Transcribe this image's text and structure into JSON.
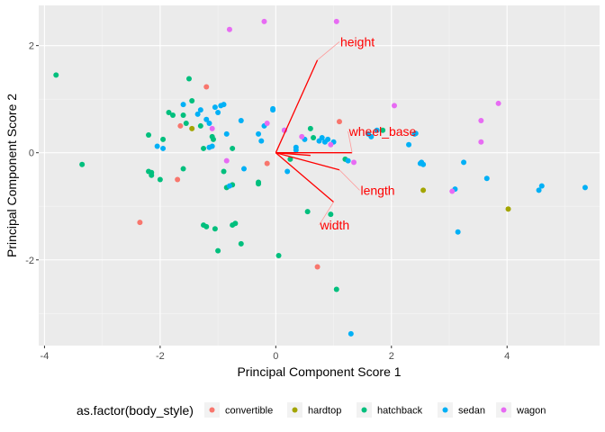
{
  "chart_data": {
    "type": "scatter",
    "subtype": "pca-biplot",
    "xlabel": "Principal Component Score 1",
    "ylabel": "Principal Component Score 2",
    "xlim": [
      -4.1,
      5.6
    ],
    "ylim": [
      -3.6,
      2.75
    ],
    "xticks": [
      -4,
      -2,
      0,
      2,
      4
    ],
    "yticks": [
      -2,
      0,
      2
    ],
    "xtick_labels": [
      "-4",
      "-2",
      "0",
      "2",
      "4"
    ],
    "ytick_labels": [
      "-2",
      "0",
      "2"
    ],
    "grid": true,
    "background": "#ebebeb",
    "legend": {
      "title": "as.factor(body_style)",
      "position": "bottom",
      "entries": [
        {
          "name": "convertible",
          "color": "#F8766D"
        },
        {
          "name": "hardtop",
          "color": "#A3A500"
        },
        {
          "name": "hatchback",
          "color": "#00BF7D"
        },
        {
          "name": "sedan",
          "color": "#00B0F6"
        },
        {
          "name": "wagon",
          "color": "#E76BF3"
        }
      ]
    },
    "series": [
      {
        "name": "convertible",
        "color": "#F8766D",
        "points": [
          [
            -1.2,
            1.23
          ],
          [
            -1.7,
            -0.5
          ],
          [
            -2.35,
            -1.3
          ],
          [
            -0.15,
            -0.2
          ],
          [
            0.72,
            -2.13
          ],
          [
            -1.65,
            0.5
          ],
          [
            1.1,
            0.58
          ]
        ]
      },
      {
        "name": "hardtop",
        "color": "#A3A500",
        "points": [
          [
            -1.45,
            0.45
          ],
          [
            2.55,
            -0.7
          ],
          [
            4.02,
            -1.05
          ]
        ]
      },
      {
        "name": "hatchback",
        "color": "#00BF7D",
        "points": [
          [
            -3.8,
            1.45
          ],
          [
            -3.35,
            -0.22
          ],
          [
            -2.2,
            0.33
          ],
          [
            -2.2,
            -0.35
          ],
          [
            -2.15,
            -0.42
          ],
          [
            -2.15,
            -0.37
          ],
          [
            -2.0,
            -0.5
          ],
          [
            -1.85,
            0.75
          ],
          [
            -1.78,
            0.7
          ],
          [
            -1.6,
            0.7
          ],
          [
            -1.55,
            0.55
          ],
          [
            -1.6,
            -0.3
          ],
          [
            -1.95,
            0.25
          ],
          [
            -1.5,
            1.38
          ],
          [
            -1.45,
            0.97
          ],
          [
            -1.3,
            0.5
          ],
          [
            -1.25,
            0.08
          ],
          [
            -1.1,
            0.3
          ],
          [
            -1.08,
            0.25
          ],
          [
            -1.25,
            -1.35
          ],
          [
            -1.2,
            -1.38
          ],
          [
            -1.05,
            -1.42
          ],
          [
            -0.85,
            -0.65
          ],
          [
            -0.75,
            -0.6
          ],
          [
            -0.75,
            -1.35
          ],
          [
            -0.7,
            -1.32
          ],
          [
            -0.6,
            -1.7
          ],
          [
            -0.3,
            -0.58
          ],
          [
            -0.3,
            -0.55
          ],
          [
            -1.0,
            -1.83
          ],
          [
            -0.75,
            0.08
          ],
          [
            0.05,
            -1.92
          ],
          [
            0.25,
            -0.12
          ],
          [
            0.55,
            -1.1
          ],
          [
            0.6,
            0.45
          ],
          [
            0.65,
            0.28
          ],
          [
            0.95,
            -1.15
          ],
          [
            1.05,
            -2.55
          ],
          [
            1.2,
            -0.12
          ],
          [
            1.85,
            0.42
          ],
          [
            -0.9,
            -0.35
          ]
        ]
      },
      {
        "name": "sedan",
        "color": "#00B0F6",
        "points": [
          [
            -2.05,
            0.12
          ],
          [
            -1.95,
            0.08
          ],
          [
            -1.6,
            0.9
          ],
          [
            -1.35,
            0.72
          ],
          [
            -1.3,
            0.8
          ],
          [
            -1.2,
            0.62
          ],
          [
            -1.15,
            0.1
          ],
          [
            -1.1,
            0.12
          ],
          [
            -1.15,
            0.55
          ],
          [
            -1.05,
            0.85
          ],
          [
            -1.0,
            0.75
          ],
          [
            -0.95,
            0.88
          ],
          [
            -0.9,
            0.9
          ],
          [
            -0.85,
            0.35
          ],
          [
            -0.8,
            -0.62
          ],
          [
            -0.6,
            0.6
          ],
          [
            -0.55,
            -0.3
          ],
          [
            -0.3,
            0.35
          ],
          [
            -0.25,
            0.22
          ],
          [
            -0.2,
            0.5
          ],
          [
            -0.05,
            0.82
          ],
          [
            -0.05,
            0.8
          ],
          [
            0.15,
            0.42
          ],
          [
            0.2,
            -0.35
          ],
          [
            0.35,
            0.1
          ],
          [
            0.35,
            0.05
          ],
          [
            0.5,
            0.25
          ],
          [
            0.75,
            0.22
          ],
          [
            0.8,
            0.28
          ],
          [
            0.85,
            0.2
          ],
          [
            0.9,
            0.25
          ],
          [
            1.0,
            0.2
          ],
          [
            1.25,
            -0.15
          ],
          [
            1.3,
            -3.38
          ],
          [
            1.6,
            0.35
          ],
          [
            1.65,
            0.3
          ],
          [
            1.75,
            0.42
          ],
          [
            2.3,
            0.15
          ],
          [
            2.4,
            0.35
          ],
          [
            2.42,
            0.36
          ],
          [
            2.5,
            -0.2
          ],
          [
            2.55,
            -0.22
          ],
          [
            2.52,
            -0.18
          ],
          [
            3.15,
            -1.48
          ],
          [
            3.25,
            -0.18
          ],
          [
            3.1,
            -0.68
          ],
          [
            3.65,
            -0.48
          ],
          [
            4.55,
            -0.7
          ],
          [
            4.6,
            -0.62
          ],
          [
            5.35,
            -0.65
          ]
        ]
      },
      {
        "name": "wagon",
        "color": "#E76BF3",
        "points": [
          [
            -0.8,
            2.3
          ],
          [
            -0.2,
            2.45
          ],
          [
            1.05,
            2.45
          ],
          [
            -1.1,
            0.45
          ],
          [
            -0.85,
            -0.15
          ],
          [
            -0.15,
            0.55
          ],
          [
            0.15,
            0.42
          ],
          [
            0.45,
            0.3
          ],
          [
            0.95,
            0.15
          ],
          [
            1.35,
            -0.18
          ],
          [
            2.05,
            0.88
          ],
          [
            3.05,
            -0.72
          ],
          [
            3.55,
            0.6
          ],
          [
            3.55,
            0.2
          ],
          [
            3.85,
            0.92
          ]
        ]
      }
    ],
    "loadings": {
      "color": "#ff0000",
      "arrows": [
        {
          "label": "height",
          "x": 0.72,
          "y": 1.73,
          "label_x": 1.1,
          "label_y": 2.07
        },
        {
          "label": "wheel_base",
          "x": 1.32,
          "y": 0.0,
          "label_x": 1.25,
          "label_y": 0.4
        },
        {
          "label": "length",
          "x": 1.1,
          "y": -0.32,
          "label_x": 1.45,
          "label_y": -0.7
        },
        {
          "label": "width",
          "x": 1.0,
          "y": -0.92,
          "label_x": 0.75,
          "label_y": -1.35
        }
      ],
      "extra_segments": [
        [
          0.0,
          0.0,
          0.6,
          -0.05
        ]
      ]
    }
  }
}
